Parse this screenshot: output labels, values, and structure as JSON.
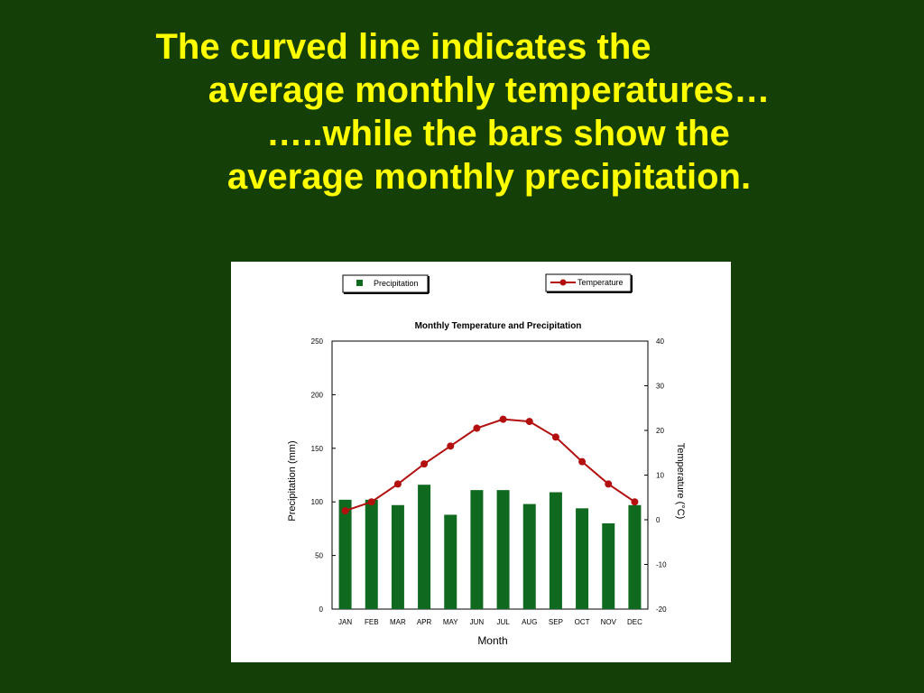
{
  "slide": {
    "title_lines": [
      "The curved line indicates the",
      "average monthly temperatures…",
      "…..while the bars show the",
      "average monthly precipitation."
    ]
  },
  "colors": {
    "background": "#143f06",
    "title": "#ffff00",
    "bars": "#0f6a1f",
    "line": "#b30f0f"
  },
  "chart_data": {
    "type": "bar+line",
    "title": "Monthly Temperature and Precipitation",
    "xlabel": "Month",
    "ylabel_left": "Precipitation (mm)",
    "ylabel_right": "Temperature (°C)",
    "categories": [
      "JAN",
      "FEB",
      "MAR",
      "APR",
      "MAY",
      "JUN",
      "JUL",
      "AUG",
      "SEP",
      "OCT",
      "NOV",
      "DEC"
    ],
    "ylim_left": [
      0,
      250
    ],
    "yticks_left": [
      0,
      50,
      100,
      150,
      200,
      250
    ],
    "ylim_right": [
      -20,
      40
    ],
    "yticks_right": [
      -20,
      -10,
      0,
      10,
      20,
      30,
      40
    ],
    "legend_position": "top",
    "grid": false,
    "series": [
      {
        "name": "Precipitation",
        "type": "bar",
        "axis": "left",
        "values": [
          102,
          102,
          97,
          116,
          88,
          111,
          111,
          98,
          109,
          94,
          80,
          97
        ]
      },
      {
        "name": "Temperature",
        "type": "line",
        "axis": "right",
        "values": [
          2,
          4,
          8,
          12.5,
          16.5,
          20.5,
          22.5,
          22,
          18.5,
          13,
          8,
          4
        ]
      }
    ]
  }
}
